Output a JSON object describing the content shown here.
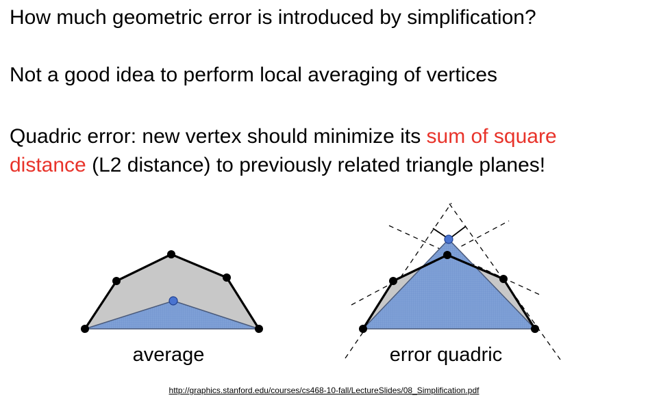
{
  "slide": {
    "line1": "How much geometric error is introduced by simplification?",
    "line2": "Not a good idea to perform local averaging of vertices",
    "line3": {
      "before": "Quadric error: new vertex should minimize its ",
      "highlight": "sum of square"
    },
    "line4": {
      "highlight": "distance",
      "after": " (L2 distance) to previously related triangle planes!"
    },
    "highlight_color": "#e8332a"
  },
  "figure": {
    "left_label": "average",
    "right_label": "error quadric",
    "colors": {
      "gray_fill": "#c8c8c8",
      "blue_fill": "#7fa0d6",
      "blue_vertex": "#4a74d0"
    }
  },
  "source": {
    "url_text": "http://graphics.stanford.edu/courses/cs468-10-fall/LectureSlides/08_Simplification.pdf"
  }
}
